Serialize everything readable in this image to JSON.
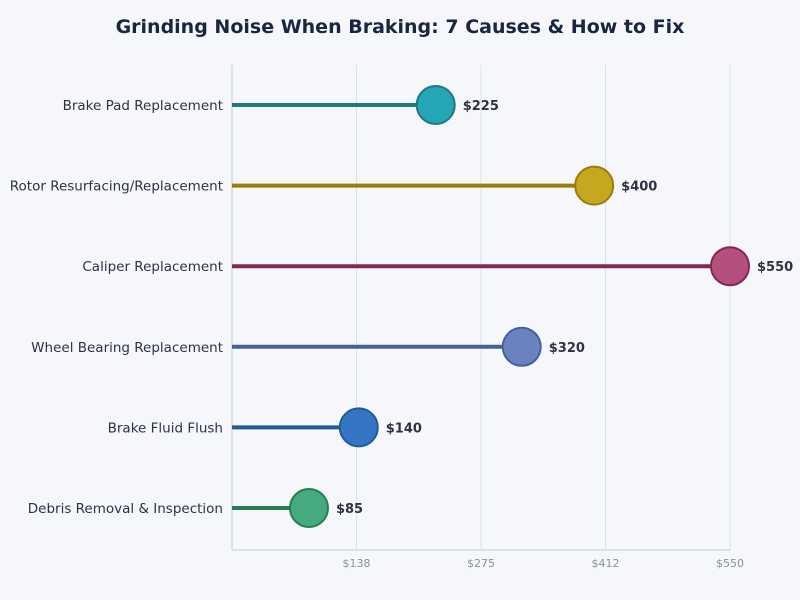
{
  "chart_data": {
    "type": "lollipop",
    "title": "Grinding Noise When Braking: 7 Causes & How to Fix",
    "orientation": "horizontal",
    "xlim": [
      0,
      550
    ],
    "grid": true,
    "x_ticks": [
      "$138",
      "$275",
      "$412",
      "$550"
    ],
    "x_tick_values": [
      137.5,
      275,
      412.5,
      550
    ],
    "categories": [
      "Brake Pad Replacement",
      "Rotor Resurfacing/Replacement",
      "Caliper Replacement",
      "Wheel Bearing Replacement",
      "Brake Fluid Flush",
      "Debris Removal & Inspection"
    ],
    "values": [
      225,
      400,
      550,
      320,
      140,
      85
    ],
    "data_labels": [
      "$225",
      "$400",
      "$550",
      "$320",
      "$140",
      "$85"
    ],
    "line_colors": [
      "#1f7a80",
      "#9a7d0a",
      "#7d2a57",
      "#46609a",
      "#235a94",
      "#267c55"
    ],
    "dot_colors": [
      "#26a5b5",
      "#c4a81e",
      "#b5507e",
      "#6b82c0",
      "#3476c4",
      "#45ab7e"
    ]
  }
}
